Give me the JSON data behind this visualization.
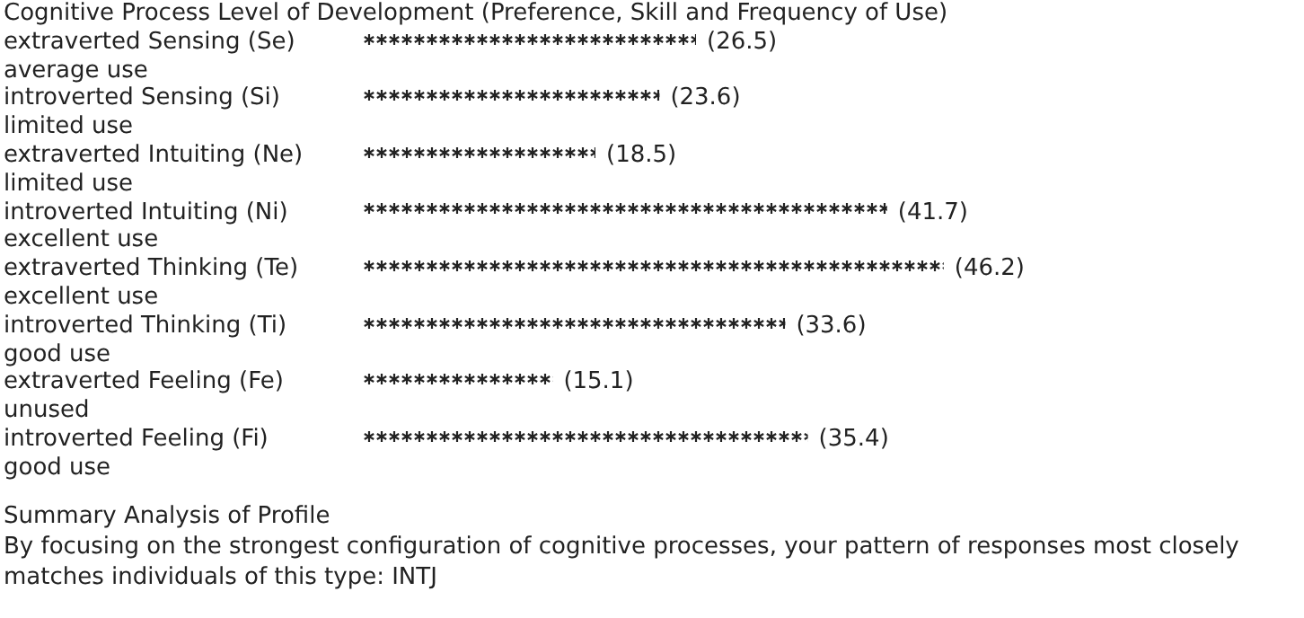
{
  "chart_data": {
    "type": "bar",
    "orientation": "horizontal",
    "title": "Cognitive Process Level of Development (Preference, Skill and Frequency of Use)",
    "categories": [
      "extraverted Sensing (Se)",
      "introverted Sensing (Si)",
      "extraverted Intuiting (Ne)",
      "introverted Intuiting (Ni)",
      "extraverted Thinking (Te)",
      "introverted Thinking (Ti)",
      "extraverted Feeling (Fe)",
      "introverted Feeling (Fi)"
    ],
    "values": [
      26.5,
      23.6,
      18.5,
      41.7,
      46.2,
      33.6,
      15.1,
      35.4
    ],
    "value_labels": [
      "(26.5)",
      "(23.6)",
      "(18.5)",
      "(41.7)",
      "(46.2)",
      "(33.6)",
      "(15.1)",
      "(35.4)"
    ],
    "color": "#222222",
    "annotations": [
      "average use",
      "limited use",
      "limited use",
      "excellent use",
      "excellent use",
      "good use",
      "unused",
      "good use",
      "Summary Analysis of Profile",
      "By focusing on the strongest configuration of cognitive processes, your pattern of responses most closely matches individuals of this type: INTJ"
    ]
  }
}
